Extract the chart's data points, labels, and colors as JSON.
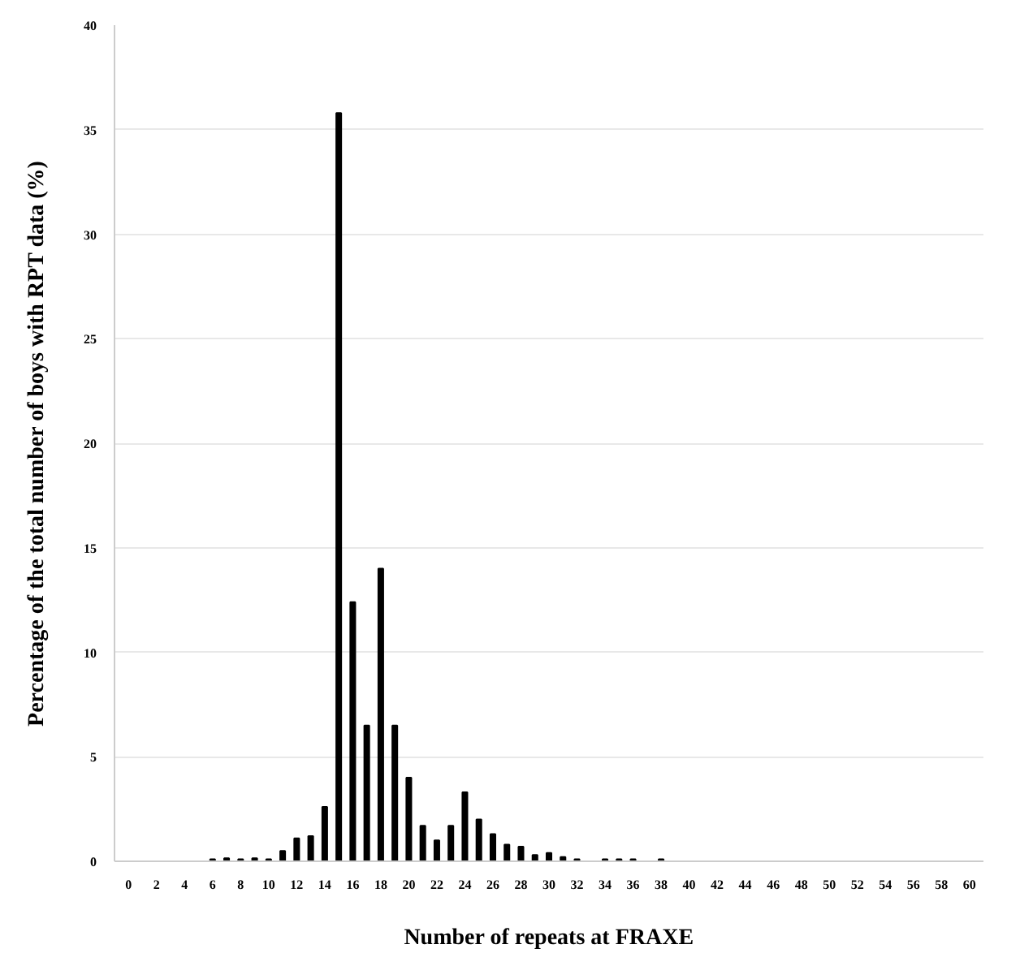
{
  "chart_data": {
    "type": "bar",
    "xlabel": "Number of repeats at FRAXE",
    "ylabel": "Percentage of the total number of boys with RPT data (%)",
    "x": [
      0,
      1,
      2,
      3,
      4,
      5,
      6,
      7,
      8,
      9,
      10,
      11,
      12,
      13,
      14,
      15,
      16,
      17,
      18,
      19,
      20,
      21,
      22,
      23,
      24,
      25,
      26,
      27,
      28,
      29,
      30,
      31,
      32,
      33,
      34,
      35,
      36,
      37,
      38,
      39,
      40,
      41,
      42,
      43,
      44,
      45,
      46,
      47,
      48,
      49,
      50,
      51,
      52,
      53,
      54,
      55,
      56,
      57,
      58,
      59,
      60
    ],
    "values": [
      0,
      0,
      0,
      0,
      0,
      0,
      0.1,
      0.15,
      0.1,
      0.15,
      0.1,
      0.5,
      1.1,
      1.2,
      2.6,
      35.8,
      12.4,
      6.5,
      14,
      6.5,
      4,
      1.7,
      1,
      1.7,
      3.3,
      2,
      1.3,
      0.8,
      0.7,
      0.3,
      0.4,
      0.2,
      0.1,
      0,
      0.1,
      0.1,
      0.1,
      0,
      0.1,
      0,
      0,
      0,
      0,
      0,
      0,
      0,
      0,
      0,
      0,
      0,
      0,
      0,
      0,
      0,
      0,
      0,
      0,
      0,
      0,
      0,
      0
    ],
    "color": "#000000",
    "xlim": [
      -1,
      61
    ],
    "xticks": [
      0,
      2,
      4,
      6,
      8,
      10,
      12,
      14,
      16,
      18,
      20,
      22,
      24,
      26,
      28,
      30,
      32,
      34,
      36,
      38,
      40,
      42,
      44,
      46,
      48,
      50,
      52,
      54,
      56,
      58,
      60
    ],
    "ylim": [
      0,
      40
    ],
    "yticks": [
      0,
      5,
      10,
      15,
      20,
      25,
      30,
      35,
      40
    ],
    "grid": "y"
  }
}
